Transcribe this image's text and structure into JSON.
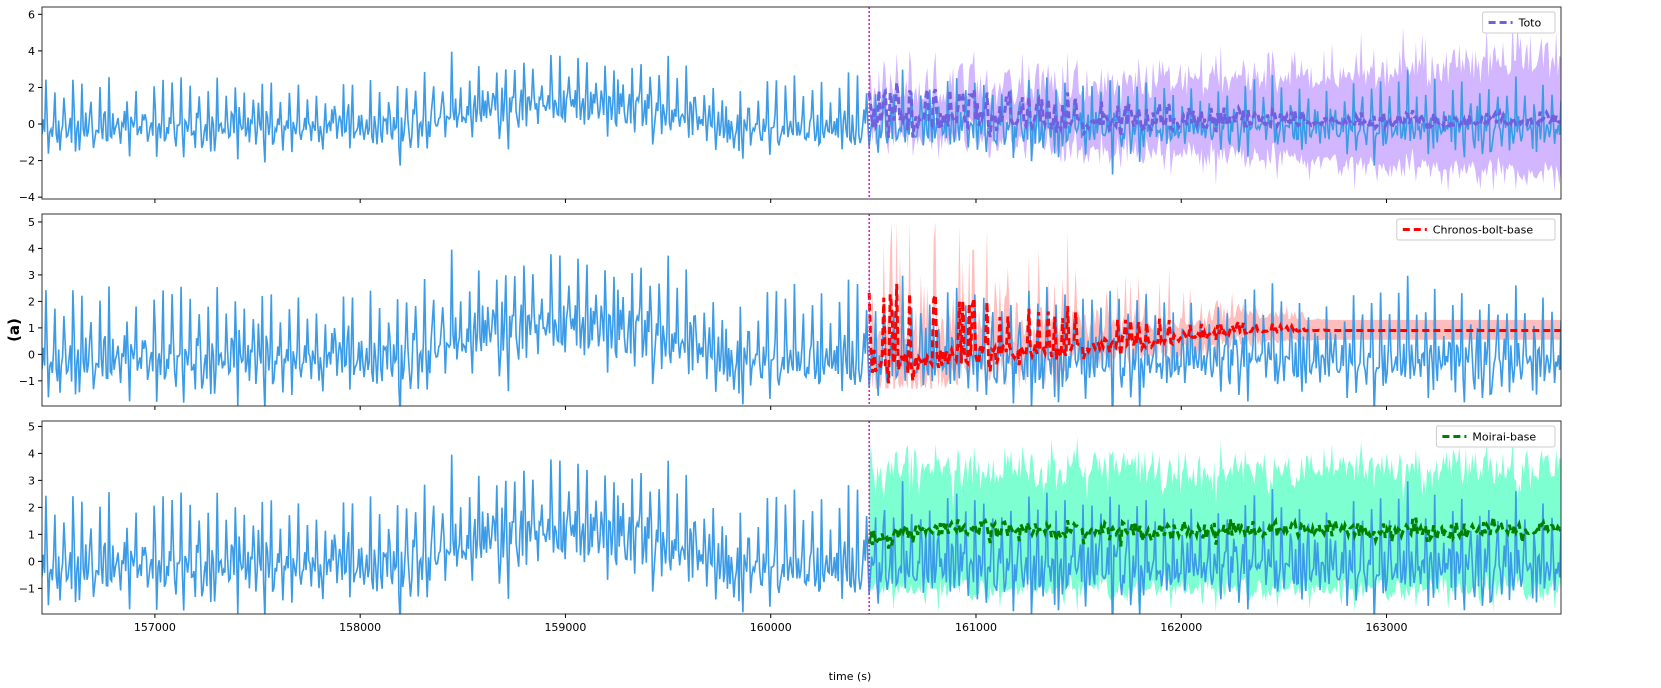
{
  "figure": {
    "panel_label": "(a)",
    "xlabel": "time (s)",
    "context_color": "#3c9be6",
    "cutoff_color": "#e020c8"
  },
  "chart_data": [
    {
      "type": "line",
      "legend": "Toto",
      "legend_position": "top-right",
      "xlim": [
        156450,
        163850
      ],
      "ylim": [
        -4.1,
        6.4
      ],
      "yticks": [
        -4,
        -2,
        0,
        2,
        4,
        6
      ],
      "xticks": [
        157000,
        158000,
        159000,
        160000,
        161000,
        162000,
        163000
      ],
      "cutoff_x": 160480,
      "forecast_color": "#7060e0",
      "band_color": "#d2b6ff",
      "forecast_mean": {
        "start": 0.1,
        "spike": 1.3,
        "late_level": 0.0
      },
      "band": {
        "start_width": 0.8,
        "end_width": 2.4,
        "max_upper": 6.0,
        "min_lower": -3.7
      },
      "grid": false
    },
    {
      "type": "line",
      "legend": "Chronos-bolt-base",
      "legend_position": "top-right",
      "xlim": [
        156450,
        163850
      ],
      "ylim": [
        -1.95,
        5.3
      ],
      "yticks": [
        -1,
        0,
        1,
        2,
        3,
        4,
        5
      ],
      "xticks": [
        157000,
        158000,
        159000,
        160000,
        161000,
        162000,
        163000
      ],
      "cutoff_x": 160480,
      "forecast_color": "#ff0000",
      "band_color": "#ffbdbd",
      "forecast_mean": {
        "start": -0.5,
        "spike": 2.4,
        "late_level": 0.9
      },
      "band": {
        "start_width": 0.4,
        "end_width": 0.3,
        "max_upper": 5.0,
        "min_lower": -1.3
      },
      "grid": false
    },
    {
      "type": "line",
      "legend": "Moirai-base",
      "legend_position": "top-right",
      "xlim": [
        156450,
        163850
      ],
      "ylim": [
        -1.95,
        5.2
      ],
      "yticks": [
        -1,
        0,
        1,
        2,
        3,
        4,
        5
      ],
      "xticks": [
        157000,
        158000,
        159000,
        160000,
        161000,
        162000,
        163000
      ],
      "cutoff_x": 160480,
      "forecast_color": "#008000",
      "band_color": "#7dffd2",
      "forecast_mean": {
        "start": 0.7,
        "level": 1.15
      },
      "band": {
        "upper": 3.4,
        "lower": -1.0
      },
      "grid": false
    }
  ]
}
